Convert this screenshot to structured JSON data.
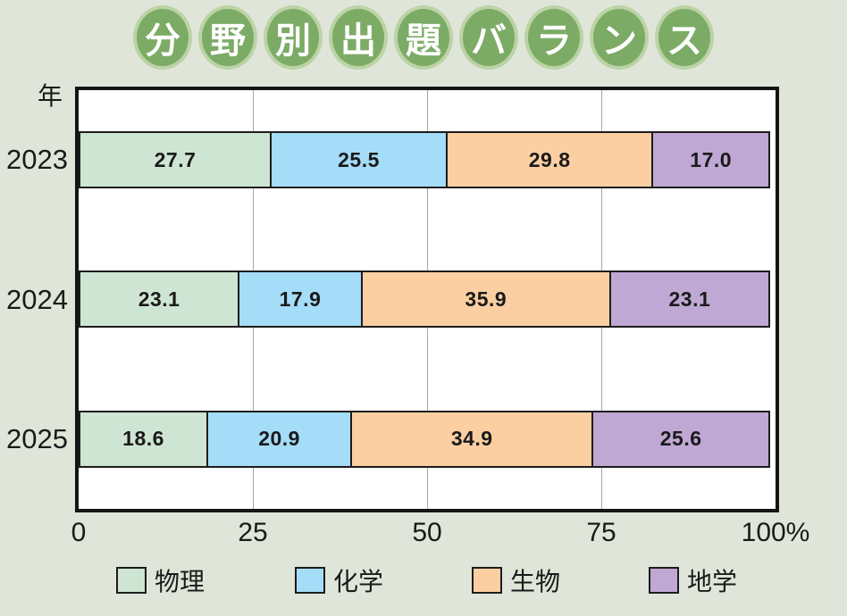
{
  "title": {
    "text": "分野別出題バランス",
    "chars": [
      "分",
      "野",
      "別",
      "出",
      "題",
      "バ",
      "ラ",
      "ン",
      "ス"
    ]
  },
  "axis": {
    "y_unit_label": "年",
    "x_ticks": [
      {
        "label": "0",
        "value": 0
      },
      {
        "label": "25",
        "value": 25
      },
      {
        "label": "50",
        "value": 50
      },
      {
        "label": "75",
        "value": 75
      },
      {
        "label": "100%",
        "value": 100
      }
    ]
  },
  "colors": {
    "background": "#dfe6d9",
    "plot_background": "#ffffff",
    "frame_border": "#141414",
    "gridline": "#a2a8a2",
    "title_circle": "#7cab66",
    "title_ring": "#bcd3a6",
    "title_text": "#ffffff",
    "physics": "#cfe5d3",
    "chemistry": "#a5dcf7",
    "biology": "#fbcfa2",
    "earth_science": "#bfa8d3"
  },
  "chart_data": {
    "type": "bar",
    "stacked": true,
    "orientation": "horizontal",
    "title": "分野別出題バランス",
    "categories": [
      "2023",
      "2024",
      "2025"
    ],
    "series": [
      {
        "name": "物理",
        "color": "#cfe5d3",
        "values": [
          27.7,
          23.1,
          18.6
        ]
      },
      {
        "name": "化学",
        "color": "#a5dcf7",
        "values": [
          25.5,
          17.9,
          20.9
        ]
      },
      {
        "name": "生物",
        "color": "#fbcfa2",
        "values": [
          29.8,
          35.9,
          34.9
        ]
      },
      {
        "name": "地学",
        "color": "#bfa8d3",
        "values": [
          17.0,
          23.1,
          25.6
        ]
      }
    ],
    "xlim": [
      0,
      100
    ],
    "x_unit": "%",
    "grid": true,
    "legend_position": "bottom"
  },
  "legend": {
    "items": [
      {
        "label": "物理",
        "color": "#cfe5d3"
      },
      {
        "label": "化学",
        "color": "#a5dcf7"
      },
      {
        "label": "生物",
        "color": "#fbcfa2"
      },
      {
        "label": "地学",
        "color": "#bfa8d3"
      }
    ]
  }
}
